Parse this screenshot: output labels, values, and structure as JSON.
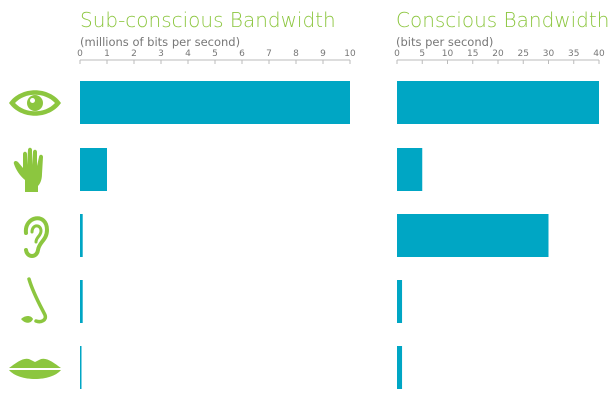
{
  "colors": {
    "bar": "#00a6c4",
    "icon": "#8cc63f",
    "title": "#8cc63f",
    "text": "#777777",
    "axis": "#bbbbbb"
  },
  "senses": [
    {
      "icon": "eye-icon"
    },
    {
      "icon": "hand-icon"
    },
    {
      "icon": "ear-icon"
    },
    {
      "icon": "nose-icon"
    },
    {
      "icon": "lips-icon"
    }
  ],
  "chart_data": [
    {
      "type": "bar",
      "orientation": "horizontal",
      "title": "Sub-conscious Bandwidth",
      "subtitle": "(millions of bits per second)",
      "ticks": [
        "0",
        "1",
        "2",
        "3",
        "4",
        "5",
        "6",
        "7",
        "8",
        "9",
        "10"
      ],
      "xlim": [
        0,
        10
      ],
      "values": [
        10,
        1,
        0.1,
        0.1,
        0.02
      ],
      "grid": false,
      "axis_position": "top"
    },
    {
      "type": "bar",
      "orientation": "horizontal",
      "title": "Conscious Bandwidth",
      "subtitle": "(bits per second)",
      "ticks": [
        "0",
        "5",
        "10",
        "15",
        "20",
        "25",
        "30",
        "35",
        "40"
      ],
      "xlim": [
        0,
        40
      ],
      "values": [
        40,
        5,
        30,
        1,
        1
      ],
      "grid": false,
      "axis_position": "top"
    }
  ]
}
